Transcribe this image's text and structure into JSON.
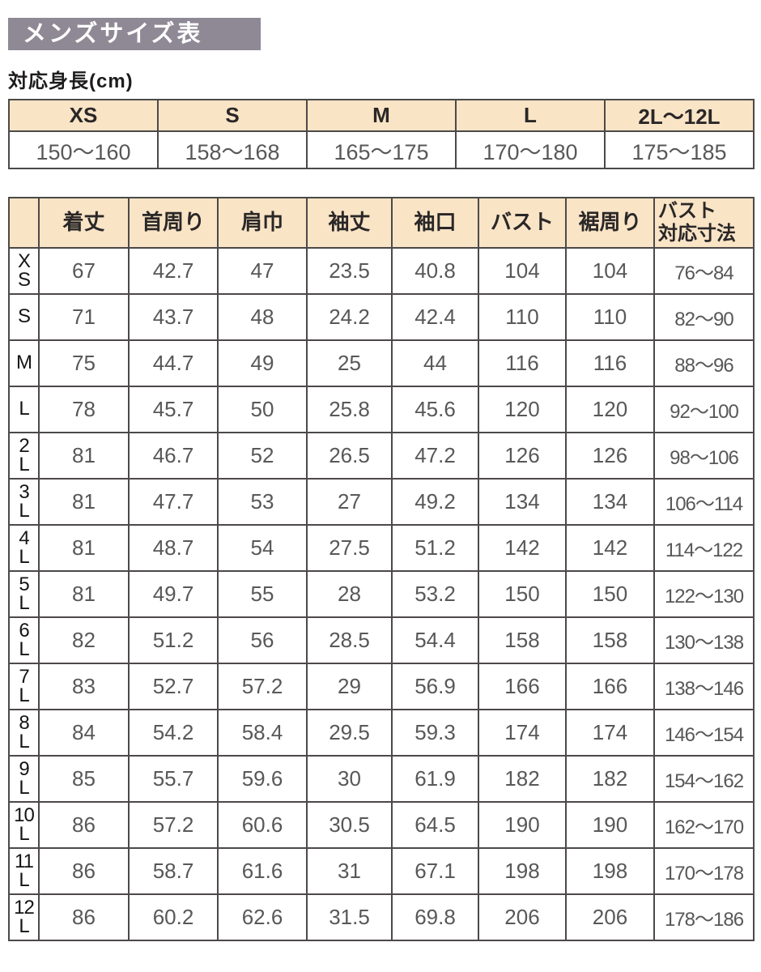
{
  "title_banner": "メンズサイズ表",
  "section_label": "対応身長(cm)",
  "colors": {
    "banner_background": "#8e8995",
    "banner_text": "#ffffff",
    "header_cell_background": "#f9e4c6",
    "table_border": "#4c4948",
    "value_text": "#595757",
    "label_text": "#1e1c1c"
  },
  "chart_data": [
    {
      "type": "table",
      "title": "対応身長(cm)",
      "columns": [
        "XS",
        "S",
        "M",
        "L",
        "2L～12L"
      ],
      "rows": [
        [
          "150～160",
          "158～168",
          "165～175",
          "170～180",
          "175～185"
        ]
      ]
    },
    {
      "type": "table",
      "title": "メンズサイズ表",
      "columns": [
        "着丈",
        "首周り",
        "肩巾",
        "袖丈",
        "袖口",
        "バスト",
        "裾周り",
        "バスト\n対応寸法"
      ],
      "row_labels": [
        "XS",
        "S",
        "M",
        "L",
        "2L",
        "3L",
        "4L",
        "5L",
        "6L",
        "7L",
        "8L",
        "9L",
        "10L",
        "11L",
        "12L"
      ],
      "row_display": [
        "X\nS",
        "S",
        "M",
        "L",
        "2\nL",
        "3\nL",
        "4\nL",
        "5\nL",
        "6\nL",
        "7\nL",
        "8\nL",
        "9\nL",
        "10\nL",
        "11\nL",
        "12\nL"
      ],
      "rows": [
        [
          "67",
          "42.7",
          "47",
          "23.5",
          "40.8",
          "104",
          "104",
          "76～84"
        ],
        [
          "71",
          "43.7",
          "48",
          "24.2",
          "42.4",
          "110",
          "110",
          "82～90"
        ],
        [
          "75",
          "44.7",
          "49",
          "25",
          "44",
          "116",
          "116",
          "88～96"
        ],
        [
          "78",
          "45.7",
          "50",
          "25.8",
          "45.6",
          "120",
          "120",
          "92～100"
        ],
        [
          "81",
          "46.7",
          "52",
          "26.5",
          "47.2",
          "126",
          "126",
          "98～106"
        ],
        [
          "81",
          "47.7",
          "53",
          "27",
          "49.2",
          "134",
          "134",
          "106～114"
        ],
        [
          "81",
          "48.7",
          "54",
          "27.5",
          "51.2",
          "142",
          "142",
          "114～122"
        ],
        [
          "81",
          "49.7",
          "55",
          "28",
          "53.2",
          "150",
          "150",
          "122～130"
        ],
        [
          "82",
          "51.2",
          "56",
          "28.5",
          "54.4",
          "158",
          "158",
          "130～138"
        ],
        [
          "83",
          "52.7",
          "57.2",
          "29",
          "56.9",
          "166",
          "166",
          "138～146"
        ],
        [
          "84",
          "54.2",
          "58.4",
          "29.5",
          "59.3",
          "174",
          "174",
          "146～154"
        ],
        [
          "85",
          "55.7",
          "59.6",
          "30",
          "61.9",
          "182",
          "182",
          "154～162"
        ],
        [
          "86",
          "57.2",
          "60.6",
          "30.5",
          "64.5",
          "190",
          "190",
          "162～170"
        ],
        [
          "86",
          "58.7",
          "61.6",
          "31",
          "67.1",
          "198",
          "198",
          "170～178"
        ],
        [
          "86",
          "60.2",
          "62.6",
          "31.5",
          "69.8",
          "206",
          "206",
          "178～186"
        ]
      ]
    }
  ]
}
